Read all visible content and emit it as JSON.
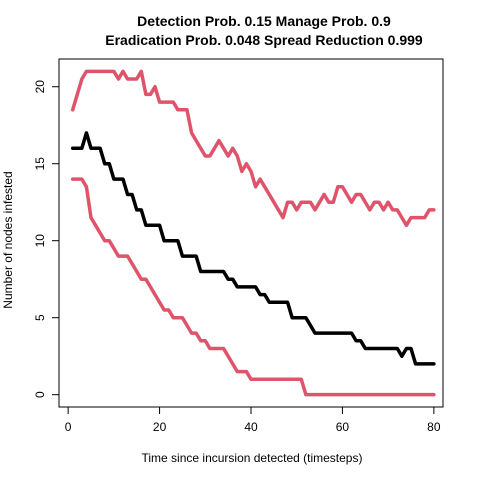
{
  "chart_data": {
    "type": "line",
    "title": "Detection Prob. 0.15 Manage Prob. 0.9",
    "subtitle": "Eradication Prob. 0.048 Spread Reduction 0.999",
    "xlabel": "Time since incursion detected (timesteps)",
    "ylabel": "Number of nodes infested",
    "xlim": [
      -2,
      82
    ],
    "ylim": [
      -0.8,
      21.8
    ],
    "xticks": [
      0,
      20,
      40,
      60,
      80
    ],
    "yticks": [
      0,
      5,
      10,
      15,
      20
    ],
    "grid": false,
    "legend": "none",
    "colors": {
      "mean": "#000000",
      "bounds": "#DF536B"
    },
    "x": [
      1,
      2,
      3,
      4,
      5,
      6,
      7,
      8,
      9,
      10,
      11,
      12,
      13,
      14,
      15,
      16,
      17,
      18,
      19,
      20,
      21,
      22,
      23,
      24,
      25,
      26,
      27,
      28,
      29,
      30,
      31,
      32,
      33,
      34,
      35,
      36,
      37,
      38,
      39,
      40,
      41,
      42,
      43,
      44,
      45,
      46,
      47,
      48,
      49,
      50,
      51,
      52,
      53,
      54,
      55,
      56,
      57,
      58,
      59,
      60,
      61,
      62,
      63,
      64,
      65,
      66,
      67,
      68,
      69,
      70,
      71,
      72,
      73,
      74,
      75,
      76,
      77,
      78,
      79,
      80
    ],
    "series": [
      {
        "role": "upper",
        "color": "#DF536B",
        "values": [
          18.5,
          19.5,
          20.5,
          21,
          21,
          21,
          21,
          21,
          21,
          21,
          20.5,
          21,
          20.5,
          20.5,
          20.5,
          21,
          19.5,
          19.5,
          20,
          19,
          19,
          19,
          19,
          18.5,
          18.5,
          18.5,
          17,
          16.5,
          16,
          15.5,
          15.5,
          16,
          16.5,
          16,
          15.5,
          16,
          15.5,
          14.5,
          15,
          14.5,
          13.5,
          14,
          13.5,
          13,
          12.5,
          12,
          11.5,
          12.5,
          12.5,
          12,
          12.5,
          12.5,
          12.5,
          12,
          12.5,
          13,
          12.5,
          12.5,
          13.5,
          13.5,
          13,
          12.5,
          13,
          13,
          12.5,
          12,
          12.5,
          12.5,
          12,
          12.5,
          12,
          12,
          11.5,
          11,
          11.5,
          11.5,
          11.5,
          11.5,
          12,
          12
        ]
      },
      {
        "role": "mean",
        "color": "#000000",
        "values": [
          16,
          16,
          16,
          17,
          16,
          16,
          16,
          15,
          15,
          14,
          14,
          14,
          13,
          13,
          12,
          12,
          11,
          11,
          11,
          11,
          10,
          10,
          10,
          10,
          9,
          9,
          9,
          9,
          8,
          8,
          8,
          8,
          8,
          8,
          7.5,
          7.5,
          7,
          7,
          7,
          7,
          7,
          6.5,
          6.5,
          6,
          6,
          6,
          6,
          6,
          5,
          5,
          5,
          5,
          4.5,
          4,
          4,
          4,
          4,
          4,
          4,
          4,
          4,
          4,
          3.5,
          3.5,
          3,
          3,
          3,
          3,
          3,
          3,
          3,
          3,
          2.5,
          3,
          3,
          2,
          2,
          2,
          2,
          2
        ]
      },
      {
        "role": "lower",
        "color": "#DF536B",
        "values": [
          14,
          14,
          14,
          13.5,
          11.5,
          11,
          10.5,
          10,
          10,
          9.5,
          9,
          9,
          9,
          8.5,
          8,
          7.5,
          7.5,
          7,
          6.5,
          6,
          5.5,
          5.5,
          5,
          5,
          5,
          4.5,
          4,
          4,
          3.5,
          3.5,
          3,
          3,
          3,
          3,
          2.5,
          2,
          1.5,
          1.5,
          1.5,
          1,
          1,
          1,
          1,
          1,
          1,
          1,
          1,
          1,
          1,
          1,
          1,
          0,
          0,
          0,
          0,
          0,
          0,
          0,
          0,
          0,
          0,
          0,
          0,
          0,
          0,
          0,
          0,
          0,
          0,
          0,
          0,
          0,
          0,
          0,
          0,
          0,
          0,
          0,
          0,
          0
        ]
      }
    ]
  }
}
